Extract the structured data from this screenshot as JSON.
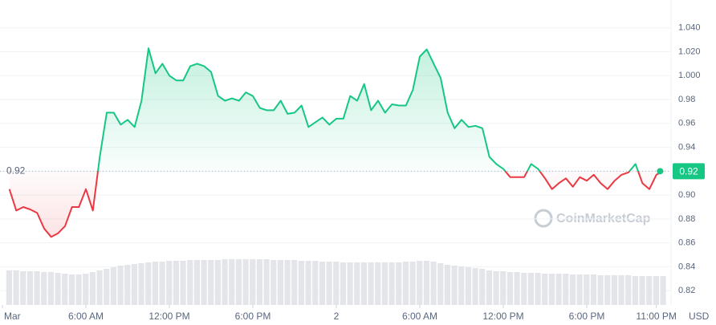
{
  "chart_data": {
    "type": "baseline-line",
    "x": [
      0.5,
      1,
      1.5,
      2,
      2.5,
      3,
      3.5,
      4,
      4.5,
      5,
      5.5,
      6,
      6.5,
      7,
      7.5,
      8,
      8.5,
      9,
      9.5,
      10,
      10.5,
      11,
      11.5,
      12,
      12.5,
      13,
      13.5,
      14,
      14.5,
      15,
      15.5,
      16,
      16.5,
      17,
      17.5,
      18,
      18.5,
      19,
      19.5,
      20,
      20.5,
      21,
      21.5,
      22,
      22.5,
      23,
      23.5,
      24,
      24.5,
      25,
      25.5,
      26,
      26.5,
      27,
      27.5,
      28,
      28.5,
      29,
      29.5,
      30,
      30.5,
      31,
      31.5,
      32,
      32.5,
      33,
      33.5,
      34,
      34.5,
      35,
      35.5,
      36,
      36.5,
      37,
      37.5,
      38,
      38.5,
      39,
      39.5,
      40,
      40.5,
      41,
      41.5,
      42,
      42.5,
      43,
      43.5,
      44,
      44.5,
      45,
      45.5,
      46,
      46.5,
      47,
      47.5
    ],
    "values": [
      0.905,
      0.887,
      0.89,
      0.888,
      0.885,
      0.872,
      0.865,
      0.868,
      0.874,
      0.89,
      0.89,
      0.905,
      0.887,
      0.932,
      0.969,
      0.969,
      0.959,
      0.963,
      0.957,
      0.979,
      1.023,
      1.002,
      1.01,
      1.0,
      0.996,
      0.996,
      1.008,
      1.01,
      1.008,
      1.003,
      0.983,
      0.979,
      0.981,
      0.979,
      0.986,
      0.983,
      0.973,
      0.971,
      0.971,
      0.979,
      0.968,
      0.969,
      0.975,
      0.957,
      0.961,
      0.965,
      0.959,
      0.964,
      0.964,
      0.983,
      0.979,
      0.993,
      0.971,
      0.979,
      0.969,
      0.976,
      0.975,
      0.975,
      0.988,
      1.016,
      1.022,
      1.01,
      0.998,
      0.969,
      0.956,
      0.963,
      0.957,
      0.958,
      0.956,
      0.932,
      0.926,
      0.922,
      0.915,
      0.915,
      0.915,
      0.926,
      0.922,
      0.914,
      0.905,
      0.91,
      0.914,
      0.907,
      0.915,
      0.912,
      0.917,
      0.91,
      0.905,
      0.912,
      0.917,
      0.919,
      0.926,
      0.91,
      0.905,
      0.917,
      0.92
    ],
    "volume": [
      43,
      43,
      42,
      42,
      42,
      41,
      41,
      40,
      39,
      38,
      38,
      39,
      41,
      43,
      45,
      47,
      49,
      50,
      51,
      52,
      53,
      54,
      54,
      55,
      55,
      55,
      56,
      56,
      56,
      56,
      56,
      57,
      57,
      57,
      57,
      57,
      57,
      57,
      56,
      56,
      56,
      56,
      55,
      55,
      55,
      54,
      54,
      54,
      53,
      53,
      53,
      53,
      53,
      53,
      53,
      53,
      53,
      54,
      54,
      55,
      55,
      54,
      52,
      50,
      49,
      48,
      47,
      46,
      45,
      43,
      42,
      42,
      41,
      41,
      40,
      40,
      40,
      39,
      39,
      39,
      39,
      38,
      38,
      38,
      38,
      37,
      37,
      37,
      37,
      37,
      36,
      36,
      36,
      36,
      36
    ],
    "baseline": 0.92,
    "last_price": 0.92,
    "up_color": "#16c784",
    "down_color": "#ea3943",
    "xlim": [
      0,
      48
    ],
    "xticks": [
      {
        "value": 0,
        "label": "Mar"
      },
      {
        "value": 6,
        "label": "6:00 AM"
      },
      {
        "value": 12,
        "label": "12:00 PM"
      },
      {
        "value": 18,
        "label": "6:00 PM"
      },
      {
        "value": 24,
        "label": "2"
      },
      {
        "value": 30,
        "label": "6:00 AM"
      },
      {
        "value": 36,
        "label": "12:00 PM"
      },
      {
        "value": 42,
        "label": "6:00 PM"
      },
      {
        "value": 47,
        "label": "11:00 PM"
      }
    ],
    "ylim": [
      0.808,
      1.06
    ],
    "yticks": [
      0.82,
      0.84,
      0.86,
      0.88,
      {
        "value": 0.9,
        "label": "0.90"
      },
      0.92,
      0.94,
      0.96,
      0.98,
      {
        "value": 1,
        "label": "1.000"
      },
      {
        "value": 1.02,
        "label": "1.020"
      },
      {
        "value": 1.04,
        "label": "1.040"
      }
    ],
    "y_unit": "USD",
    "watermark": "CoinMarketCap",
    "grid": true
  }
}
